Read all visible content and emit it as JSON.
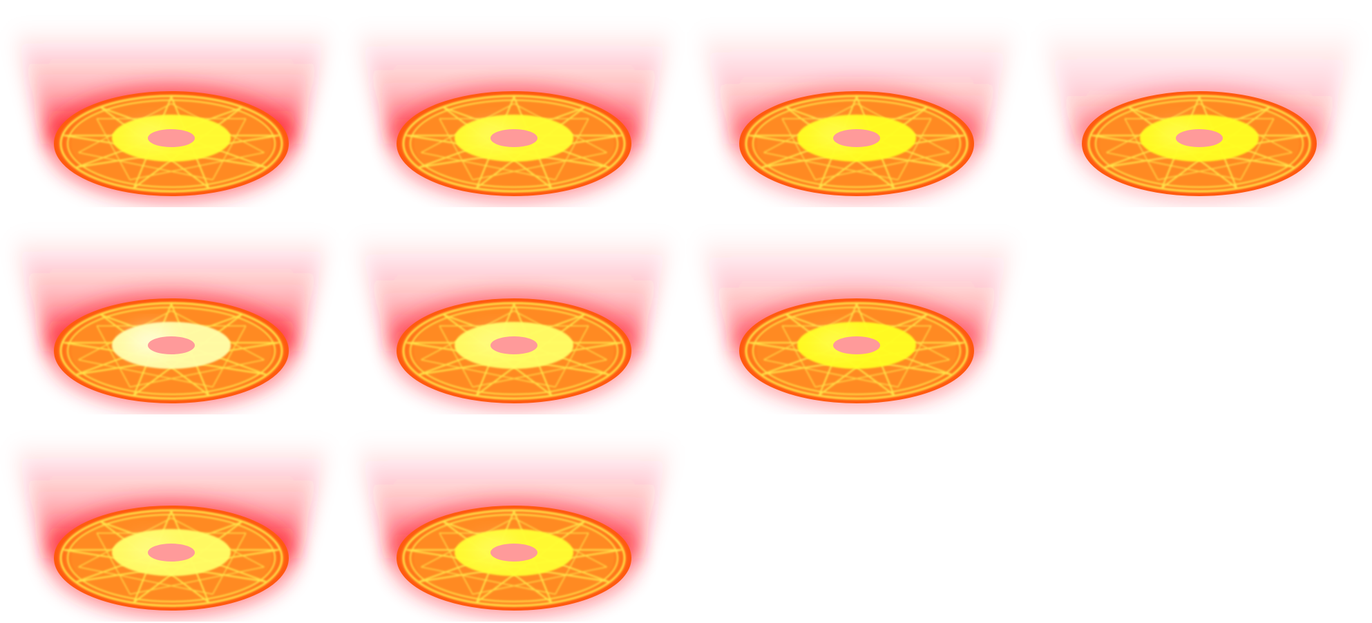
{
  "sprite_sheet": {
    "description_visible_text": "",
    "columns": 4,
    "frames": [
      {
        "row": 0,
        "col": 0,
        "flare": 1.0,
        "core": "#ffff33"
      },
      {
        "row": 0,
        "col": 1,
        "flare": 0.85,
        "core": "#ffff33"
      },
      {
        "row": 0,
        "col": 2,
        "flare": 0.65,
        "core": "#ffff22"
      },
      {
        "row": 0,
        "col": 3,
        "flare": 0.5,
        "core": "#ffff22"
      },
      {
        "row": 1,
        "col": 0,
        "flare": 0.95,
        "core": "#ffffaa"
      },
      {
        "row": 1,
        "col": 1,
        "flare": 0.8,
        "core": "#ffff66"
      },
      {
        "row": 1,
        "col": 2,
        "flare": 0.7,
        "core": "#ffff22"
      },
      {
        "row": 2,
        "col": 0,
        "flare": 0.95,
        "core": "#ffff66"
      },
      {
        "row": 2,
        "col": 1,
        "flare": 0.85,
        "core": "#ffff33"
      }
    ],
    "colors": {
      "flare": "#ff1a2a",
      "disc_outer": "#ff5a10",
      "disc_inner": "#ff8a22",
      "lines": "#ffe24a",
      "ring_glow": "#fff200",
      "hole": "#ff9a9a"
    },
    "icon": "magic-circle-effect"
  }
}
